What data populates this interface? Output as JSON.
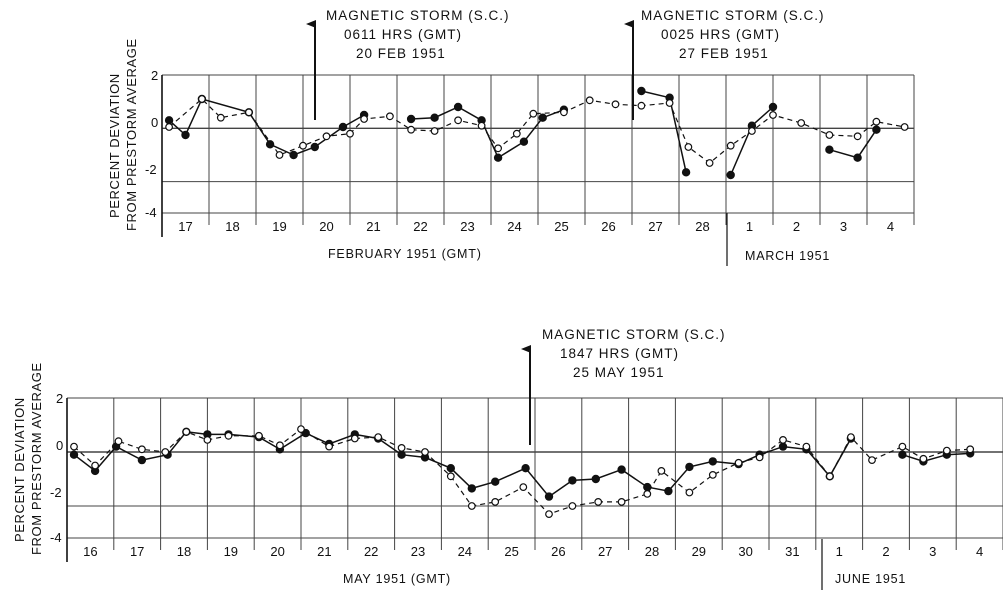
{
  "colors": {
    "ink": "#111111",
    "background": "#ffffff",
    "grid": "#444444"
  },
  "chart_data": [
    {
      "type": "line",
      "ylabel": [
        "PERCENT DEVIATION",
        "FROM PRESTORM AVERAGE"
      ],
      "ylim": [
        -4,
        2
      ],
      "yticks": [
        "2",
        "0",
        "-2",
        "-4"
      ],
      "grid": true,
      "day_labels": [
        "17",
        "18",
        "19",
        "20",
        "21",
        "22",
        "23",
        "24",
        "25",
        "26",
        "27",
        "28",
        "1",
        "2",
        "3",
        "4"
      ],
      "xlabel_left": "FEBRUARY 1951 (GMT)",
      "xlabel_right": "MARCH 1951",
      "annotation": {
        "lines": [
          "MAGNETIC STORM (S.C.)",
          "0611 HRS (GMT)",
          "20 FEB 1951"
        ],
        "x": 3.25
      },
      "annotation2": {
        "lines": [
          "MAGNETIC STORM (S.C.)",
          "0025 HRS (GMT)",
          "27 FEB 1951"
        ],
        "x": 10.0
      },
      "series": [
        {
          "style": "solid",
          "segments": [
            [
              [
                0.15,
                0.3
              ],
              [
                0.5,
                -0.25
              ],
              [
                0.85,
                1.1
              ],
              [
                1.85,
                0.6
              ],
              [
                2.3,
                -0.6
              ],
              [
                2.8,
                -1.0
              ],
              [
                3.25,
                -0.7
              ],
              [
                3.85,
                0.05
              ],
              [
                4.3,
                0.5
              ]
            ],
            [
              [
                5.3,
                0.35
              ],
              [
                5.8,
                0.4
              ],
              [
                6.3,
                0.8
              ],
              [
                6.8,
                0.3
              ],
              [
                7.15,
                -1.1
              ],
              [
                7.7,
                -0.5
              ],
              [
                8.1,
                0.4
              ],
              [
                8.55,
                0.7
              ]
            ],
            [
              [
                10.2,
                1.4
              ],
              [
                10.8,
                1.15
              ],
              [
                11.15,
                -1.65
              ]
            ],
            [
              [
                12.1,
                -1.75
              ],
              [
                12.55,
                0.1
              ],
              [
                13.0,
                0.8
              ]
            ],
            [
              [
                14.2,
                -0.8
              ],
              [
                14.8,
                -1.1
              ],
              [
                15.2,
                -0.05
              ]
            ]
          ]
        },
        {
          "style": "dashed",
          "segments": [
            [
              [
                0.15,
                0.05
              ],
              [
                0.85,
                1.1
              ],
              [
                1.25,
                0.4
              ],
              [
                1.85,
                0.6
              ],
              [
                2.5,
                -1.0
              ],
              [
                3.0,
                -0.65
              ],
              [
                3.5,
                -0.3
              ],
              [
                4.0,
                -0.2
              ],
              [
                4.3,
                0.35
              ],
              [
                4.85,
                0.45
              ],
              [
                5.3,
                -0.05
              ],
              [
                5.8,
                -0.1
              ],
              [
                6.3,
                0.3
              ],
              [
                6.8,
                0.1
              ],
              [
                7.15,
                -0.75
              ],
              [
                7.55,
                -0.2
              ],
              [
                7.9,
                0.55
              ],
              [
                8.55,
                0.6
              ],
              [
                9.1,
                1.05
              ],
              [
                9.65,
                0.9
              ],
              [
                10.2,
                0.85
              ],
              [
                10.8,
                0.95
              ],
              [
                11.2,
                -0.7
              ],
              [
                11.65,
                -1.3
              ],
              [
                12.1,
                -0.65
              ],
              [
                12.55,
                -0.1
              ],
              [
                13.0,
                0.5
              ],
              [
                13.6,
                0.2
              ],
              [
                14.2,
                -0.25
              ],
              [
                14.8,
                -0.3
              ],
              [
                15.2,
                0.25
              ],
              [
                15.8,
                0.05
              ]
            ]
          ]
        }
      ]
    },
    {
      "type": "line",
      "ylabel": [
        "PERCENT DEVIATION",
        "FROM PRESTORM AVERAGE"
      ],
      "ylim": [
        -4,
        2
      ],
      "yticks": [
        "2",
        "0",
        "-2",
        "-4"
      ],
      "grid": true,
      "day_labels": [
        "16",
        "17",
        "18",
        "19",
        "20",
        "21",
        "22",
        "23",
        "24",
        "25",
        "26",
        "27",
        "28",
        "29",
        "30",
        "31",
        "1",
        "2",
        "3",
        "4"
      ],
      "xlabel_left": "MAY 1951 (GMT)",
      "xlabel_right": "JUNE 1951",
      "annotation": {
        "lines": [
          "MAGNETIC STORM (S.C.)",
          "1847 HRS (GMT)",
          "25 MAY 1951"
        ],
        "x": 9.75
      },
      "series": [
        {
          "style": "solid",
          "segments": [
            [
              [
                0.15,
                -0.1
              ],
              [
                0.6,
                -0.7
              ],
              [
                1.05,
                0.2
              ],
              [
                1.6,
                -0.3
              ],
              [
                2.15,
                -0.1
              ],
              [
                2.55,
                0.75
              ],
              [
                3.0,
                0.65
              ],
              [
                3.45,
                0.65
              ],
              [
                4.1,
                0.55
              ],
              [
                4.55,
                0.1
              ],
              [
                5.1,
                0.7
              ],
              [
                5.6,
                0.3
              ],
              [
                6.15,
                0.65
              ],
              [
                6.65,
                0.5
              ],
              [
                7.15,
                -0.1
              ],
              [
                7.65,
                -0.2
              ],
              [
                8.2,
                -0.6
              ],
              [
                8.65,
                -1.35
              ],
              [
                9.15,
                -1.1
              ],
              [
                9.8,
                -0.6
              ],
              [
                10.3,
                -1.65
              ],
              [
                10.8,
                -1.05
              ],
              [
                11.3,
                -1.0
              ],
              [
                11.85,
                -0.65
              ],
              [
                12.4,
                -1.3
              ],
              [
                12.85,
                -1.45
              ],
              [
                13.3,
                -0.55
              ],
              [
                13.8,
                -0.35
              ],
              [
                14.35,
                -0.45
              ],
              [
                14.8,
                -0.1
              ],
              [
                15.3,
                0.2
              ],
              [
                15.8,
                0.1
              ],
              [
                16.3,
                -0.9
              ],
              [
                16.75,
                0.5
              ]
            ],
            [
              [
                17.85,
                -0.1
              ],
              [
                18.3,
                -0.35
              ],
              [
                18.8,
                -0.1
              ],
              [
                19.3,
                -0.05
              ]
            ]
          ]
        },
        {
          "style": "dashed",
          "segments": [
            [
              [
                0.15,
                0.2
              ],
              [
                0.6,
                -0.5
              ],
              [
                1.1,
                0.4
              ],
              [
                1.6,
                0.1
              ],
              [
                2.1,
                0.0
              ],
              [
                2.55,
                0.75
              ],
              [
                3.0,
                0.45
              ],
              [
                3.45,
                0.6
              ],
              [
                4.1,
                0.6
              ],
              [
                4.55,
                0.25
              ],
              [
                5.0,
                0.85
              ],
              [
                5.6,
                0.2
              ],
              [
                6.15,
                0.5
              ],
              [
                6.65,
                0.55
              ],
              [
                7.15,
                0.15
              ],
              [
                7.65,
                0.0
              ],
              [
                8.2,
                -0.9
              ],
              [
                8.65,
                -2.0
              ],
              [
                9.15,
                -1.85
              ],
              [
                9.75,
                -1.3
              ],
              [
                10.3,
                -2.3
              ],
              [
                10.8,
                -2.0
              ],
              [
                11.35,
                -1.85
              ],
              [
                11.85,
                -1.85
              ],
              [
                12.4,
                -1.55
              ],
              [
                12.7,
                -0.7
              ],
              [
                13.3,
                -1.5
              ],
              [
                13.8,
                -0.85
              ],
              [
                14.35,
                -0.4
              ],
              [
                14.8,
                -0.2
              ],
              [
                15.3,
                0.45
              ],
              [
                15.8,
                0.2
              ],
              [
                16.3,
                -0.9
              ],
              [
                16.75,
                0.55
              ],
              [
                17.2,
                -0.3
              ],
              [
                17.85,
                0.2
              ],
              [
                18.3,
                -0.25
              ],
              [
                18.8,
                0.05
              ],
              [
                19.3,
                0.1
              ]
            ]
          ]
        }
      ]
    }
  ]
}
